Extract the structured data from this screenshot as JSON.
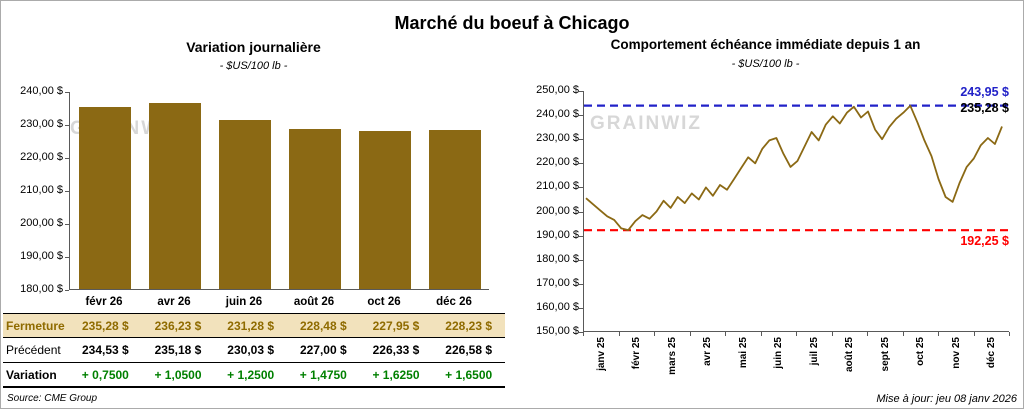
{
  "page_title": "Marché du boeuf à Chicago",
  "watermark": "GRAINWIZ",
  "footer": {
    "source": "Source: CME Group",
    "updated": "Mise à jour: jeu 08 janv 2026"
  },
  "chart_data": [
    {
      "type": "bar",
      "title": "Variation  journalière",
      "subtitle": "- $US/100 lb -",
      "ylim": [
        180,
        240
      ],
      "ytick_labels": [
        "240,00 $",
        "230,00 $",
        "220,00 $",
        "210,00 $",
        "200,00 $",
        "190,00 $",
        "180,00 $"
      ],
      "categories": [
        "févr 26",
        "avr 26",
        "juin 26",
        "août 26",
        "oct 26",
        "déc 26"
      ],
      "values": [
        235.28,
        236.23,
        231.28,
        228.48,
        227.95,
        228.23
      ],
      "bar_color": "#8B6914",
      "grid": false,
      "table_rows": [
        {
          "label": "Fermeture",
          "style": "fermeture",
          "values": [
            "235,28  $",
            "236,23  $",
            "231,28  $",
            "228,48  $",
            "227,95  $",
            "228,23  $"
          ]
        },
        {
          "label": "Précédent",
          "style": "precedent",
          "values": [
            "234,53  $",
            "235,18  $",
            "230,03  $",
            "227,00  $",
            "226,33  $",
            "226,58  $"
          ]
        },
        {
          "label": "Variation",
          "style": "variation",
          "values": [
            "+ 0,7500",
            "+ 1,0500",
            "+ 1,2500",
            "+ 1,4750",
            "+ 1,6250",
            "+ 1,6500"
          ]
        }
      ]
    },
    {
      "type": "line",
      "title": "Comportement  échéance  immédiate  depuis 1 an",
      "subtitle": "- $US/100 lb -",
      "ylim": [
        150,
        250
      ],
      "ytick_labels": [
        "250,00 $",
        "240,00 $",
        "230,00 $",
        "220,00 $",
        "210,00 $",
        "200,00 $",
        "190,00 $",
        "180,00 $",
        "170,00 $",
        "160,00 $",
        "150,00 $"
      ],
      "x_labels": [
        "janv 25",
        "févr 25",
        "mars 25",
        "avr 25",
        "mai 25",
        "juin 25",
        "juil 25",
        "août 25",
        "sept 25",
        "oct 25",
        "nov 25",
        "déc 25"
      ],
      "line_color": "#8B6914",
      "grid": false,
      "legend": "none",
      "values": [
        205.5,
        203.0,
        200.5,
        198.0,
        196.5,
        193.0,
        192.3,
        196.0,
        198.5,
        197.0,
        200.0,
        204.5,
        201.5,
        206.0,
        203.5,
        207.5,
        205.0,
        210.0,
        206.5,
        211.0,
        209.0,
        213.5,
        218.0,
        222.5,
        220.0,
        226.0,
        229.5,
        230.5,
        224.0,
        218.5,
        221.0,
        227.0,
        233.0,
        229.5,
        236.0,
        239.5,
        236.5,
        241.0,
        243.5,
        239.0,
        241.5,
        234.0,
        230.0,
        235.0,
        238.5,
        241.0,
        243.9,
        237.0,
        229.5,
        223.0,
        213.5,
        206.0,
        204.0,
        212.0,
        218.5,
        222.0,
        227.5,
        230.5,
        228.0,
        235.28
      ],
      "hlines": [
        {
          "value": 243.95,
          "label": "243,95 $",
          "color": "#2222C8",
          "style": "dashed"
        },
        {
          "value": 192.25,
          "label": "192,25 $",
          "color": "#FF0000",
          "style": "dashed"
        }
      ],
      "last_value_label": {
        "value": 235.28,
        "text": "235,28 $",
        "color": "#000000"
      }
    }
  ]
}
